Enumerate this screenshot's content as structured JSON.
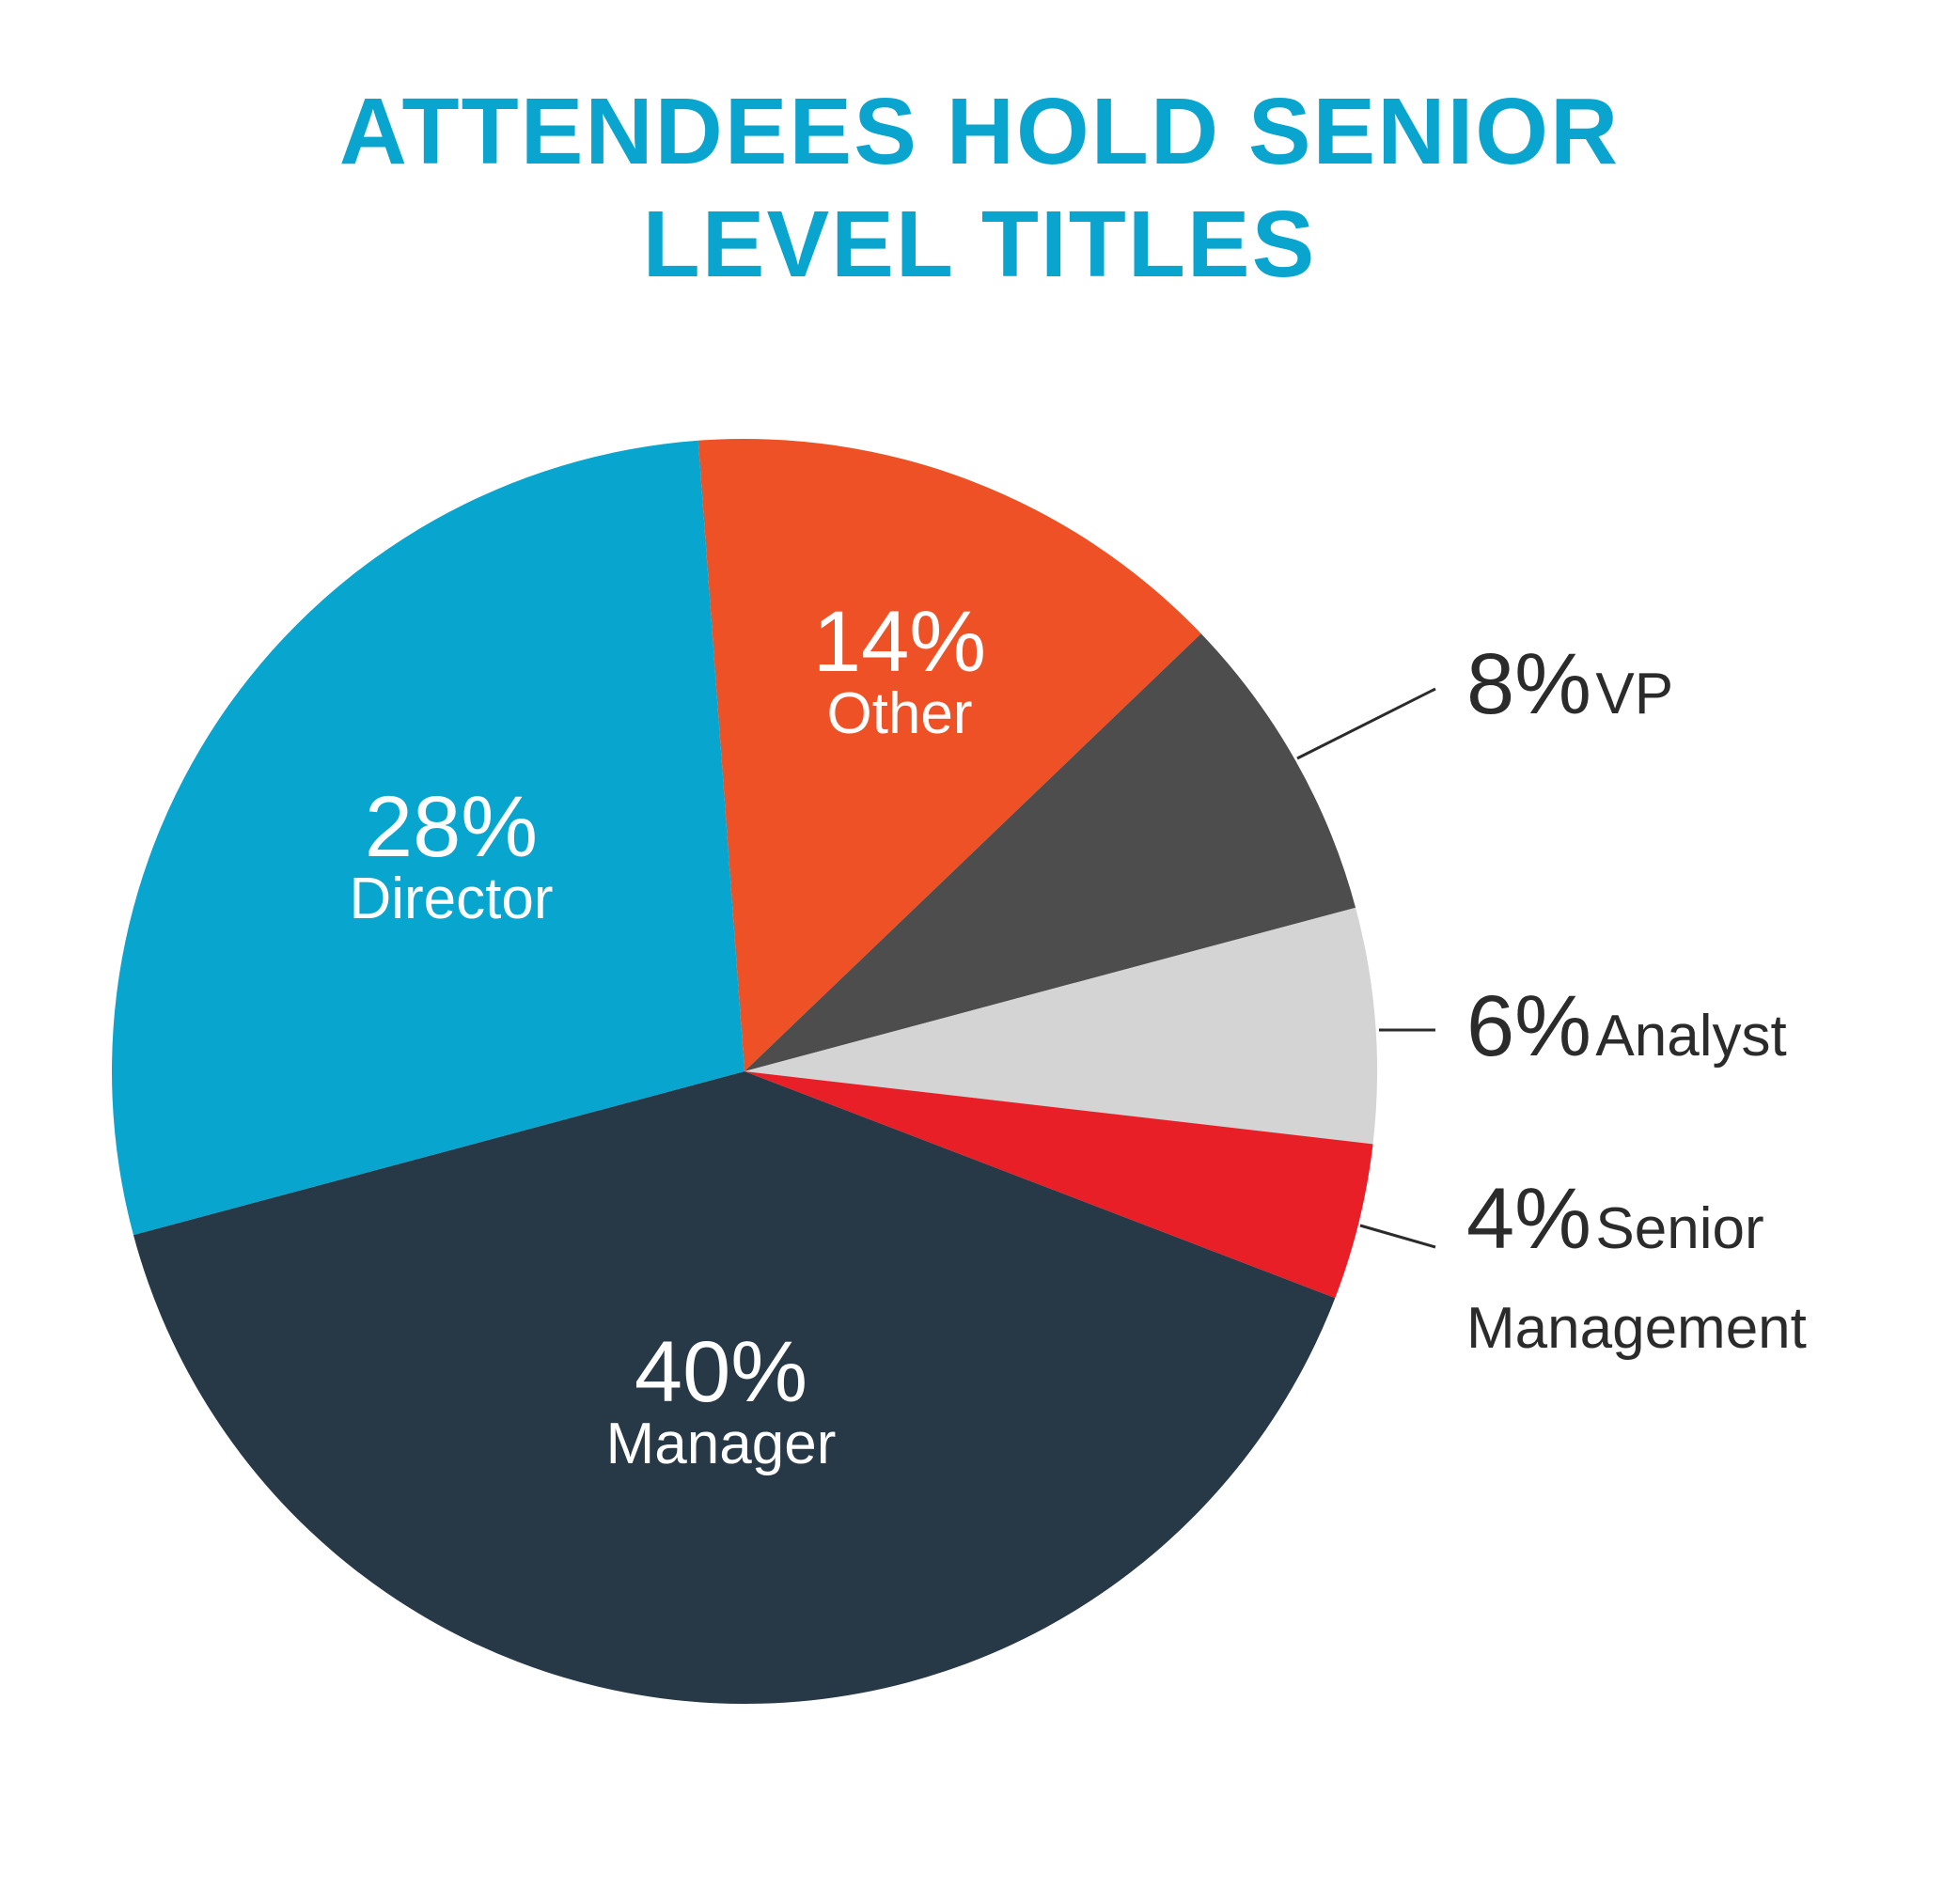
{
  "chart_data": {
    "type": "pie",
    "title": "ATTENDEES HOLD SENIOR LEVEL TITLES",
    "categories": [
      "Other",
      "VP",
      "Analyst",
      "Senior Management",
      "Manager",
      "Director"
    ],
    "values": [
      14,
      8,
      6,
      4,
      40,
      28
    ],
    "value_labels": [
      "14%",
      "8%",
      "6%",
      "4%",
      "40%",
      "28%"
    ],
    "colors": [
      "#ee5125",
      "#4d4d4d",
      "#d4d4d4",
      "#e81f27",
      "#273847",
      "#08a5cf"
    ]
  }
}
